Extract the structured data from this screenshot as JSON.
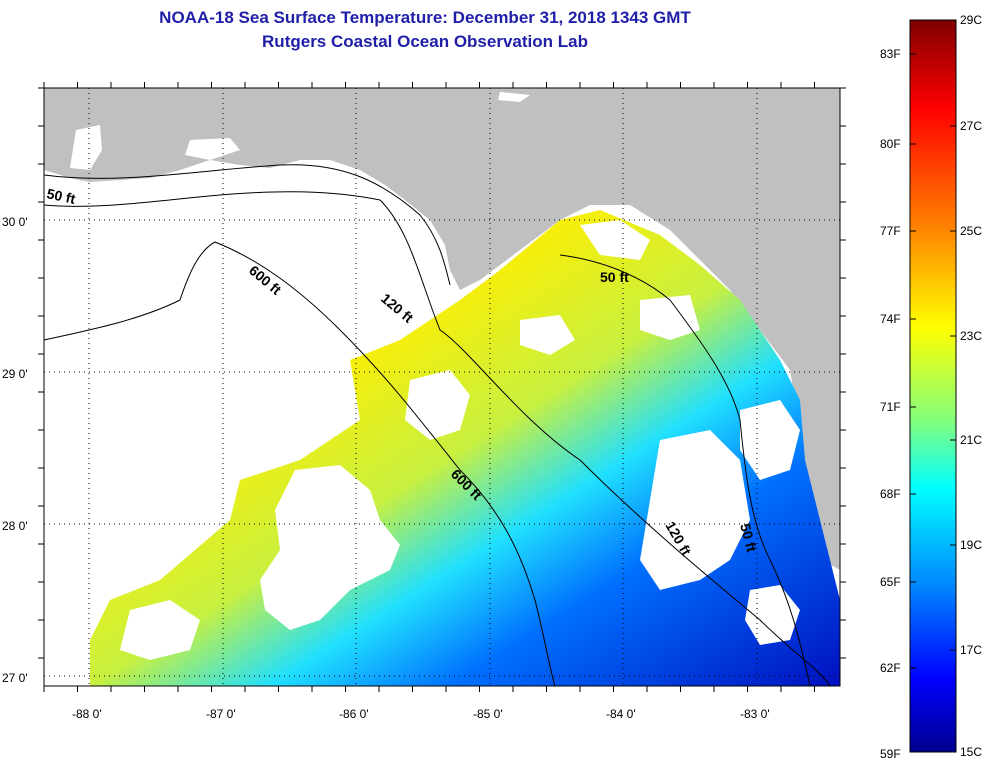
{
  "title": "NOAA-18 Sea Surface Temperature:  December 31, 2018 1343 GMT",
  "subtitle": "Rutgers Coastal Ocean Observation Lab",
  "longitude_labels": [
    "-88 0'",
    "-87 0'",
    "-86 0'",
    "-85 0'",
    "-84 0'",
    "-83 0'"
  ],
  "latitude_labels": [
    "30 0'",
    "29 0'",
    "28 0'",
    "27 0'"
  ],
  "depth_contour_labels": {
    "c50_west": "50 ft",
    "c600_north": "600 ft",
    "c120_north": "120 ft",
    "c50_east": "50 ft",
    "c600_south": "600 ft",
    "c120_south": "120 ft",
    "c50_south": "50 ft"
  },
  "colorbar": {
    "fahrenheit_labels": [
      "83F",
      "80F",
      "77F",
      "74F",
      "71F",
      "68F",
      "65F",
      "62F",
      "59F"
    ],
    "celsius_labels": [
      "29C",
      "27C",
      "25C",
      "23C",
      "21C",
      "19C",
      "17C",
      "15C"
    ],
    "colors": [
      "#7f0000",
      "#ff0000",
      "#ff8000",
      "#ffff00",
      "#80ff80",
      "#00ffff",
      "#0080ff",
      "#0000ff",
      "#00008f"
    ]
  },
  "colors": {
    "land": "#c0c0c0",
    "no_data": "#ffffff",
    "title_text": "#1f1fa8"
  }
}
